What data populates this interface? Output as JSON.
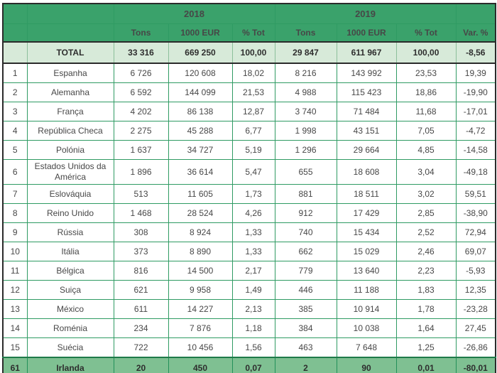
{
  "colors": {
    "header_green": "#3aa26b",
    "total_row_bg": "#d7ead9",
    "highlight_row_bg": "#7fc092",
    "grid_green": "#2f9b63",
    "outer_border": "#2b2b2b",
    "body_text": "#474747"
  },
  "chart_data": {
    "type": "table",
    "year_groups": [
      "2018",
      "2019"
    ],
    "sub_headers": [
      "Tons",
      "1000 EUR",
      "% Tot",
      "Tons",
      "1000 EUR",
      "% Tot",
      "Var. %"
    ],
    "total_row": {
      "rank": "",
      "label": "TOTAL",
      "values": [
        "33 316",
        "669 250",
        "100,00",
        "29 847",
        "611 967",
        "100,00",
        "-8,56"
      ]
    },
    "rows": [
      {
        "rank": "1",
        "country": "Espanha",
        "values": [
          "6 726",
          "120 608",
          "18,02",
          "8 216",
          "143 992",
          "23,53",
          "19,39"
        ]
      },
      {
        "rank": "2",
        "country": "Alemanha",
        "values": [
          "6 592",
          "144 099",
          "21,53",
          "4 988",
          "115 423",
          "18,86",
          "-19,90"
        ]
      },
      {
        "rank": "3",
        "country": "França",
        "values": [
          "4 202",
          "86 138",
          "12,87",
          "3 740",
          "71 484",
          "11,68",
          "-17,01"
        ]
      },
      {
        "rank": "4",
        "country": "República Checa",
        "values": [
          "2 275",
          "45 288",
          "6,77",
          "1 998",
          "43 151",
          "7,05",
          "-4,72"
        ]
      },
      {
        "rank": "5",
        "country": "Polónia",
        "values": [
          "1 637",
          "34 727",
          "5,19",
          "1 296",
          "29 664",
          "4,85",
          "-14,58"
        ]
      },
      {
        "rank": "6",
        "country": "Estados Unidos da América",
        "values": [
          "1 896",
          "36 614",
          "5,47",
          "655",
          "18 608",
          "3,04",
          "-49,18"
        ]
      },
      {
        "rank": "7",
        "country": "Eslováquia",
        "values": [
          "513",
          "11 605",
          "1,73",
          "881",
          "18 511",
          "3,02",
          "59,51"
        ]
      },
      {
        "rank": "8",
        "country": "Reino Unido",
        "values": [
          "1 468",
          "28 524",
          "4,26",
          "912",
          "17 429",
          "2,85",
          "-38,90"
        ]
      },
      {
        "rank": "9",
        "country": "Rússia",
        "values": [
          "308",
          "8 924",
          "1,33",
          "740",
          "15 434",
          "2,52",
          "72,94"
        ]
      },
      {
        "rank": "10",
        "country": "Itália",
        "values": [
          "373",
          "8 890",
          "1,33",
          "662",
          "15 029",
          "2,46",
          "69,07"
        ]
      },
      {
        "rank": "11",
        "country": "Bélgica",
        "values": [
          "816",
          "14 500",
          "2,17",
          "779",
          "13 640",
          "2,23",
          "-5,93"
        ]
      },
      {
        "rank": "12",
        "country": "Suiça",
        "values": [
          "621",
          "9 958",
          "1,49",
          "446",
          "11 188",
          "1,83",
          "12,35"
        ]
      },
      {
        "rank": "13",
        "country": "México",
        "values": [
          "611",
          "14 227",
          "2,13",
          "385",
          "10 914",
          "1,78",
          "-23,28"
        ]
      },
      {
        "rank": "14",
        "country": "Roménia",
        "values": [
          "234",
          "7 876",
          "1,18",
          "384",
          "10 038",
          "1,64",
          "27,45"
        ]
      },
      {
        "rank": "15",
        "country": "Suécia",
        "values": [
          "722",
          "10 456",
          "1,56",
          "463",
          "7 648",
          "1,25",
          "-26,86"
        ]
      },
      {
        "rank": "61",
        "country": "Irlanda",
        "highlight": true,
        "values": [
          "20",
          "450",
          "0,07",
          "2",
          "90",
          "0,01",
          "-80,01"
        ]
      }
    ]
  }
}
